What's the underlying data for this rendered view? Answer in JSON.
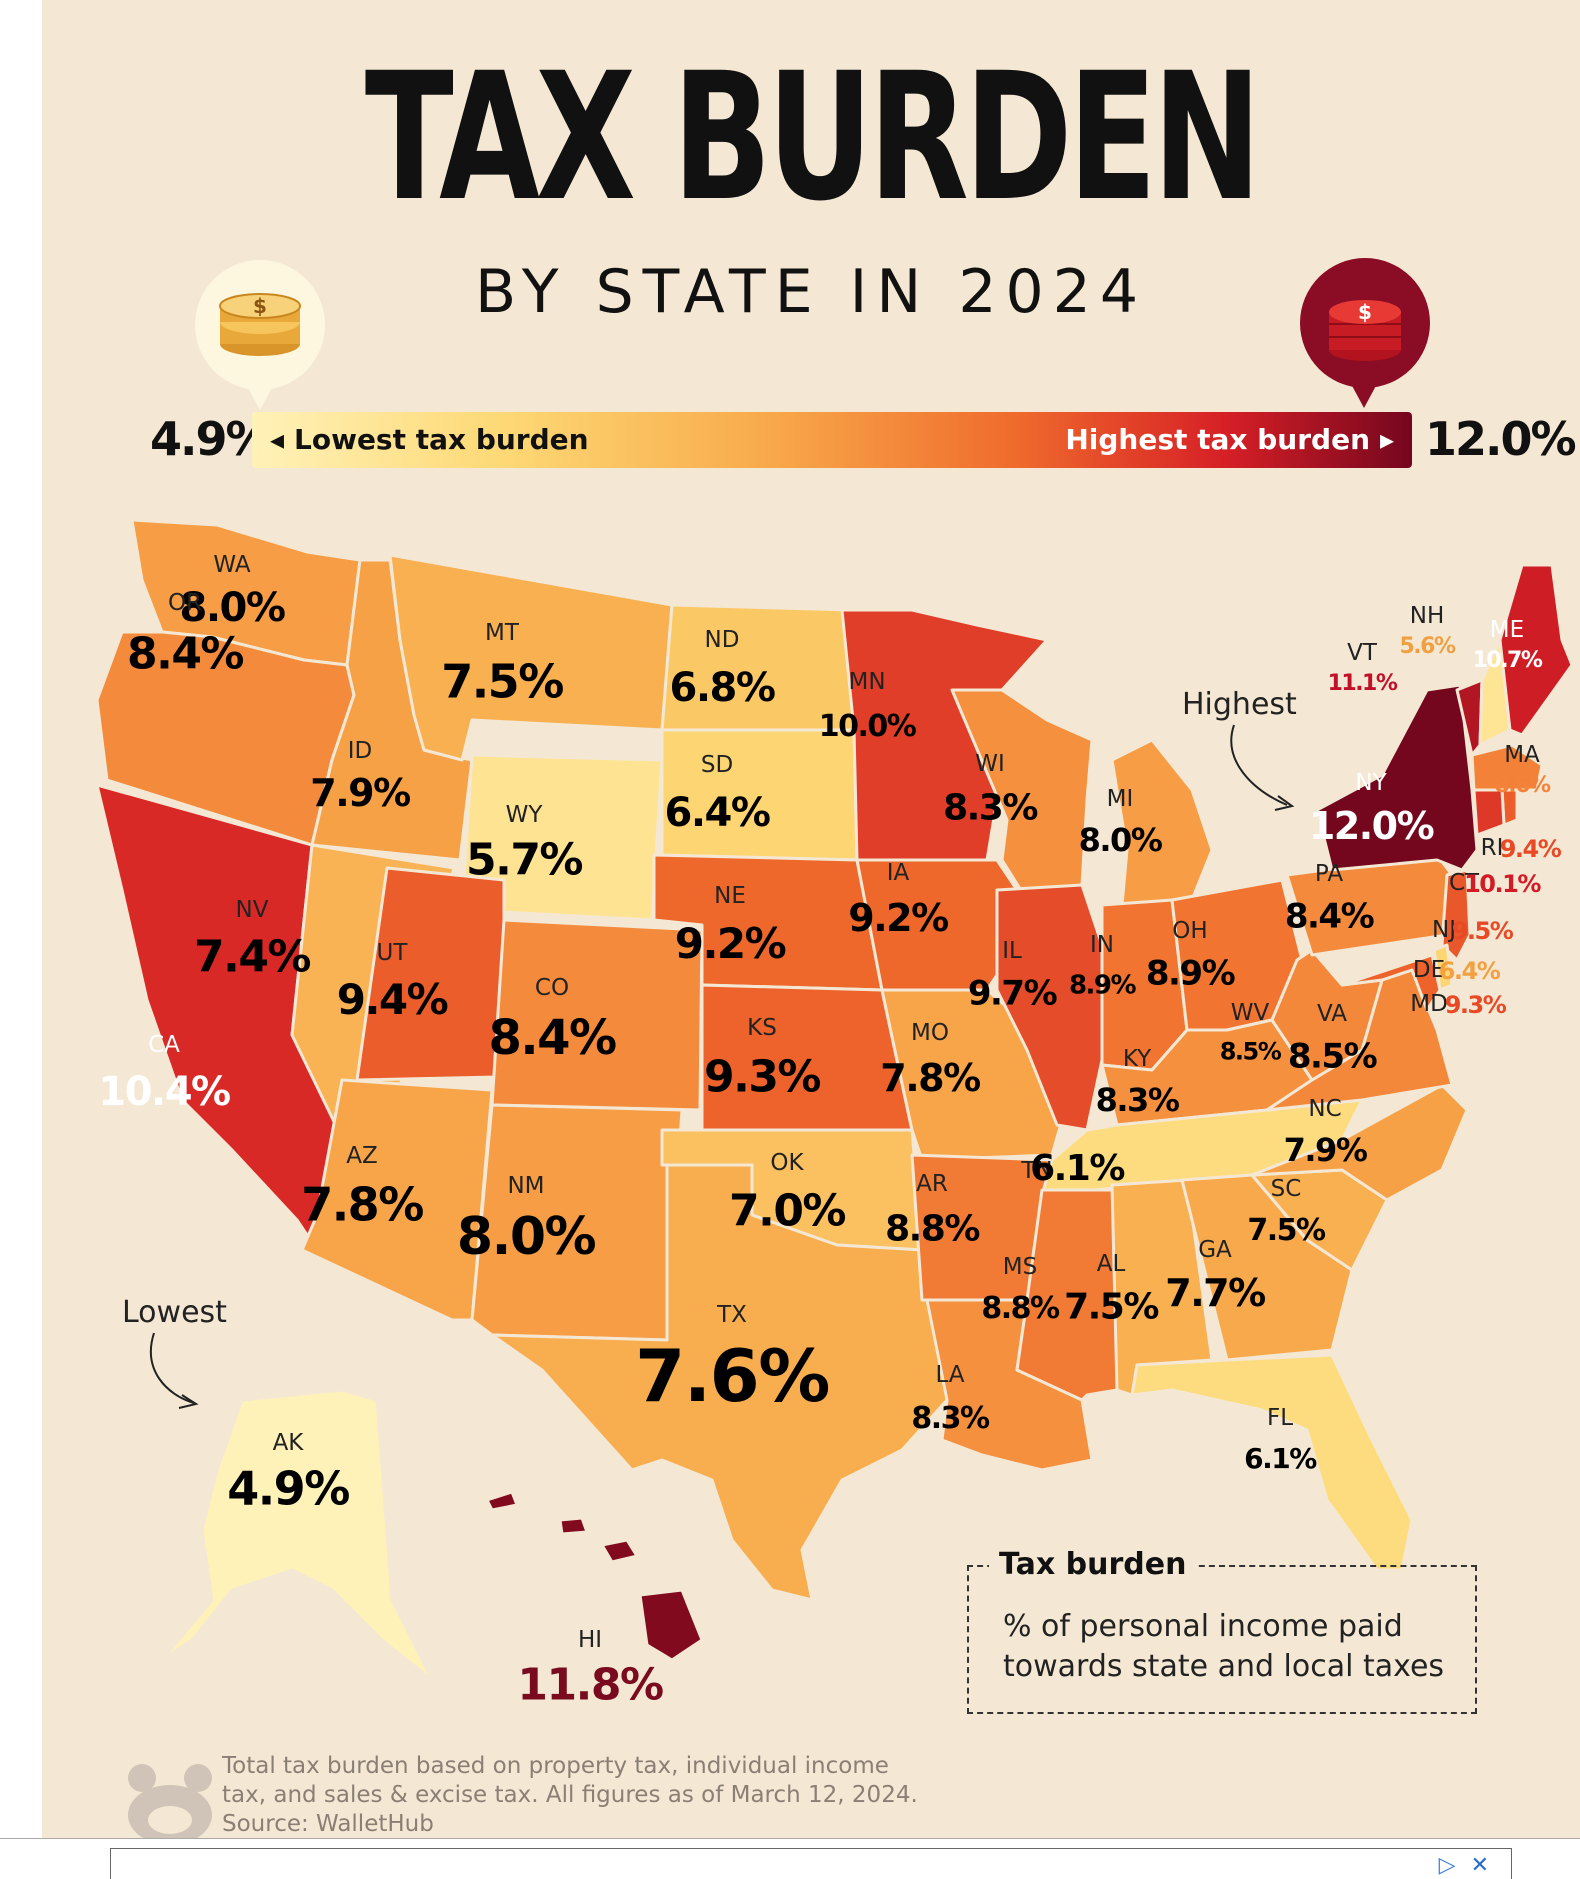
{
  "title": "TAX BURDEN",
  "subtitle": "BY STATE IN 2024",
  "scale": {
    "min_value": "4.9%",
    "max_value": "12.0%",
    "low_label": "Lowest tax burden",
    "high_label": "Highest tax burden",
    "colors": [
      "#fff2b8",
      "#fdd874",
      "#f8a84a",
      "#ef6a2c",
      "#d61f26",
      "#74061e"
    ]
  },
  "icons": {
    "low": "gold-coins-icon",
    "high": "red-coins-icon",
    "logo": "source-logo-icon"
  },
  "callouts": {
    "highest": "Highest",
    "lowest": "Lowest"
  },
  "states": [
    {
      "abbr": "WA",
      "value": 8.0,
      "label": "8.0%"
    },
    {
      "abbr": "OR",
      "value": 8.4,
      "label": "8.4%"
    },
    {
      "abbr": "CA",
      "value": 10.4,
      "label": "10.4%"
    },
    {
      "abbr": "ID",
      "value": 7.9,
      "label": "7.9%"
    },
    {
      "abbr": "NV",
      "value": 7.4,
      "label": "7.4%"
    },
    {
      "abbr": "MT",
      "value": 7.5,
      "label": "7.5%"
    },
    {
      "abbr": "WY",
      "value": 5.7,
      "label": "5.7%"
    },
    {
      "abbr": "UT",
      "value": 9.4,
      "label": "9.4%"
    },
    {
      "abbr": "AZ",
      "value": 7.8,
      "label": "7.8%"
    },
    {
      "abbr": "CO",
      "value": 8.4,
      "label": "8.4%"
    },
    {
      "abbr": "NM",
      "value": 8.0,
      "label": "8.0%"
    },
    {
      "abbr": "ND",
      "value": 6.8,
      "label": "6.8%"
    },
    {
      "abbr": "SD",
      "value": 6.4,
      "label": "6.4%"
    },
    {
      "abbr": "NE",
      "value": 9.2,
      "label": "9.2%"
    },
    {
      "abbr": "KS",
      "value": 9.3,
      "label": "9.3%"
    },
    {
      "abbr": "OK",
      "value": 7.0,
      "label": "7.0%"
    },
    {
      "abbr": "TX",
      "value": 7.6,
      "label": "7.6%"
    },
    {
      "abbr": "MN",
      "value": 10.0,
      "label": "10.0%"
    },
    {
      "abbr": "IA",
      "value": 9.2,
      "label": "9.2%"
    },
    {
      "abbr": "MO",
      "value": 7.8,
      "label": "7.8%"
    },
    {
      "abbr": "AR",
      "value": 8.8,
      "label": "8.8%"
    },
    {
      "abbr": "LA",
      "value": 8.3,
      "label": "8.3%"
    },
    {
      "abbr": "WI",
      "value": 8.3,
      "label": "8.3%"
    },
    {
      "abbr": "IL",
      "value": 9.7,
      "label": "9.7%"
    },
    {
      "abbr": "MI",
      "value": 8.0,
      "label": "8.0%"
    },
    {
      "abbr": "IN",
      "value": 8.9,
      "label": "8.9%"
    },
    {
      "abbr": "OH",
      "value": 8.9,
      "label": "8.9%"
    },
    {
      "abbr": "KY",
      "value": 8.3,
      "label": "8.3%"
    },
    {
      "abbr": "TN",
      "value": 6.1,
      "label": "6.1%"
    },
    {
      "abbr": "MS",
      "value": 8.8,
      "label": "8.8%"
    },
    {
      "abbr": "AL",
      "value": 7.5,
      "label": "7.5%"
    },
    {
      "abbr": "GA",
      "value": 7.7,
      "label": "7.7%"
    },
    {
      "abbr": "FL",
      "value": 6.1,
      "label": "6.1%"
    },
    {
      "abbr": "SC",
      "value": 7.5,
      "label": "7.5%"
    },
    {
      "abbr": "NC",
      "value": 7.9,
      "label": "7.9%"
    },
    {
      "abbr": "VA",
      "value": 8.5,
      "label": "8.5%"
    },
    {
      "abbr": "WV",
      "value": 8.5,
      "label": "8.5%"
    },
    {
      "abbr": "PA",
      "value": 8.4,
      "label": "8.4%"
    },
    {
      "abbr": "NY",
      "value": 12.0,
      "label": "12.0%"
    },
    {
      "abbr": "VT",
      "value": 11.1,
      "label": "11.1%"
    },
    {
      "abbr": "NH",
      "value": 5.6,
      "label": "5.6%"
    },
    {
      "abbr": "ME",
      "value": 10.7,
      "label": "10.7%"
    },
    {
      "abbr": "MA",
      "value": 8.6,
      "label": "8.6%"
    },
    {
      "abbr": "RI",
      "value": 9.4,
      "label": "9.4%"
    },
    {
      "abbr": "CT",
      "value": 10.1,
      "label": "10.1%"
    },
    {
      "abbr": "NJ",
      "value": 9.5,
      "label": "9.5%"
    },
    {
      "abbr": "DE",
      "value": 6.4,
      "label": "6.4%"
    },
    {
      "abbr": "MD",
      "value": 9.3,
      "label": "9.3%"
    },
    {
      "abbr": "AK",
      "value": 4.9,
      "label": "4.9%"
    },
    {
      "abbr": "HI",
      "value": 11.8,
      "label": "11.8%"
    }
  ],
  "legend": {
    "title": "Tax burden",
    "description": "% of personal income paid towards state and local taxes"
  },
  "footnote": {
    "line1": "Total tax burden based on property tax, individual income",
    "line2": "tax, and sales & excise tax. All figures as of March 12, 2024.",
    "line3": "Source: WalletHub"
  },
  "ad": {
    "adchoices_icon": "adchoices-icon",
    "close_icon": "close-icon",
    "adchoices_glyph": "▷",
    "close_glyph": "✕"
  }
}
